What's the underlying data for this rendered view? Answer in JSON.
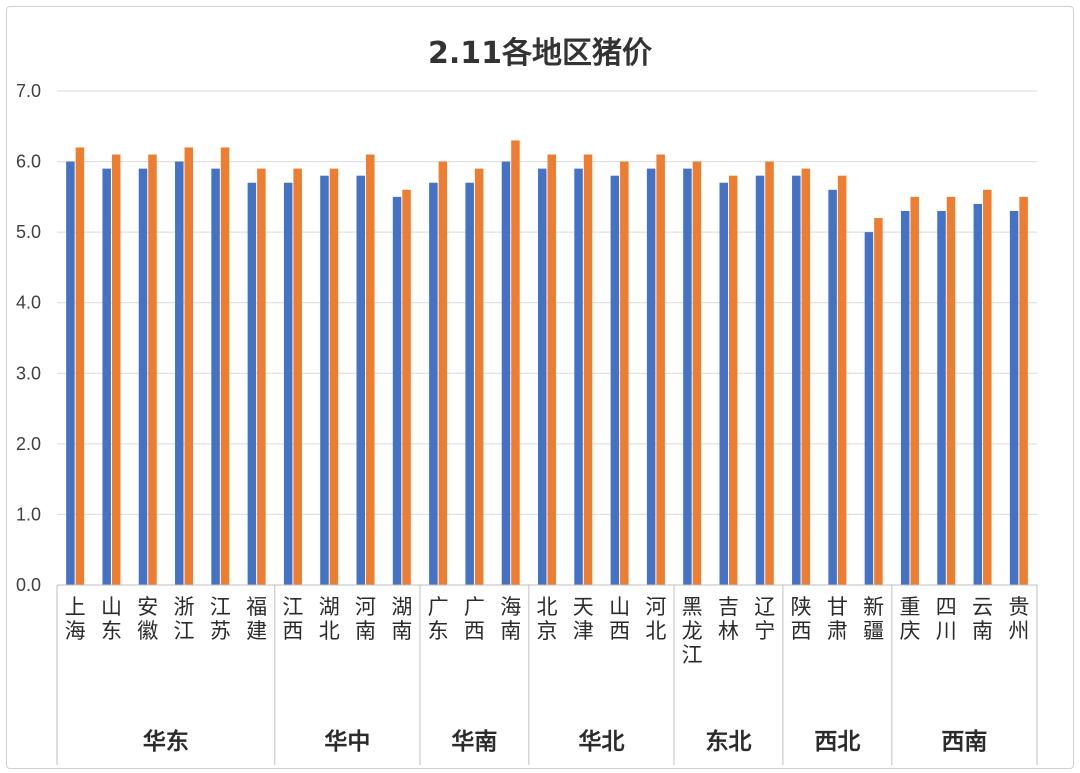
{
  "chart_data": {
    "type": "bar",
    "title": "2.11各地区猪价",
    "ylim": [
      0,
      7
    ],
    "yticks": [
      "0.0",
      "1.0",
      "2.0",
      "3.0",
      "4.0",
      "5.0",
      "6.0",
      "7.0"
    ],
    "grid": true,
    "categories": [
      "上海",
      "山东",
      "安徽",
      "浙江",
      "江苏",
      "福建",
      "江西",
      "湖北",
      "河南",
      "湖南",
      "广东",
      "广西",
      "海南",
      "北京",
      "天津",
      "山西",
      "河北",
      "黑龙江",
      "吉林",
      "辽宁",
      "陕西",
      "甘肃",
      "新疆",
      "重庆",
      "四川",
      "云南",
      "贵州"
    ],
    "groups": [
      {
        "name": "华东",
        "count": 6
      },
      {
        "name": "华中",
        "count": 4
      },
      {
        "name": "华南",
        "count": 3
      },
      {
        "name": "华北",
        "count": 4
      },
      {
        "name": "东北",
        "count": 3
      },
      {
        "name": "西北",
        "count": 3
      },
      {
        "name": "西南",
        "count": 4
      }
    ],
    "series": [
      {
        "color": "#4472C4",
        "values": [
          6.0,
          5.9,
          5.9,
          6.0,
          5.9,
          5.7,
          5.7,
          5.8,
          5.8,
          5.5,
          5.7,
          5.7,
          6.0,
          5.9,
          5.9,
          5.8,
          5.9,
          5.9,
          5.7,
          5.8,
          5.8,
          5.6,
          5.0,
          5.3,
          5.3,
          5.4,
          5.3
        ]
      },
      {
        "color": "#ED7D31",
        "values": [
          6.2,
          6.1,
          6.1,
          6.2,
          6.2,
          5.9,
          5.9,
          5.9,
          6.1,
          5.6,
          6.0,
          5.9,
          6.3,
          6.1,
          6.1,
          6.0,
          6.1,
          6.0,
          5.8,
          6.0,
          5.9,
          5.8,
          5.2,
          5.5,
          5.5,
          5.6,
          5.5
        ]
      }
    ]
  }
}
